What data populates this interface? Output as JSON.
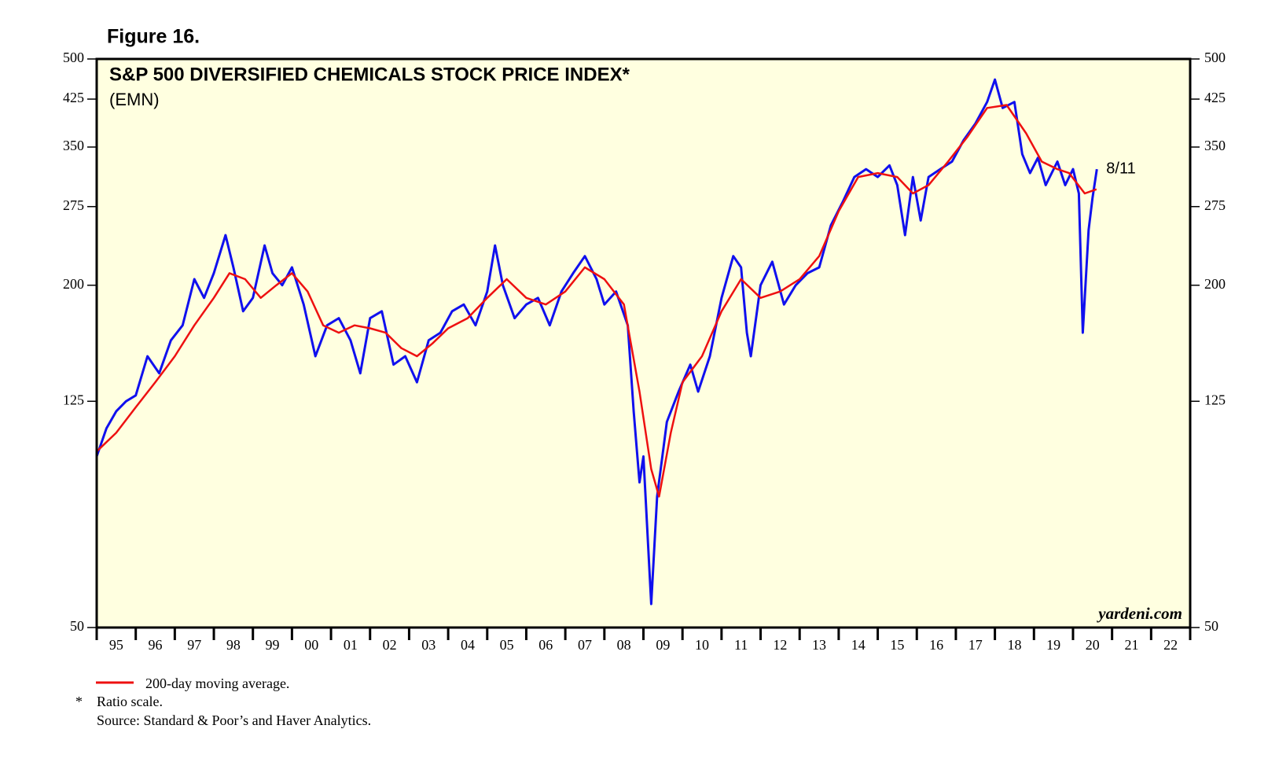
{
  "chart_data": {
    "type": "line",
    "figure_label": "Figure 16.",
    "title": "S&P 500 DIVERSIFIED CHEMICALS STOCK PRICE INDEX*",
    "subtitle": "(EMN)",
    "annotation": "8/11",
    "watermark": "yardeni.com",
    "log_scale": true,
    "ylim": [
      50,
      500
    ],
    "yticks": [
      50,
      125,
      200,
      275,
      350,
      425,
      500
    ],
    "xlim": [
      1995,
      2023
    ],
    "categories": [
      "95",
      "96",
      "97",
      "98",
      "99",
      "00",
      "01",
      "02",
      "03",
      "04",
      "05",
      "06",
      "07",
      "08",
      "09",
      "10",
      "11",
      "12",
      "13",
      "14",
      "15",
      "16",
      "17",
      "18",
      "19",
      "20",
      "21",
      "22"
    ],
    "series": [
      {
        "color": "#1010ee",
        "x": [
          1995.0,
          1995.25,
          1995.5,
          1995.75,
          1996.0,
          1996.3,
          1996.6,
          1996.9,
          1997.2,
          1997.5,
          1997.75,
          1998.0,
          1998.3,
          1998.5,
          1998.75,
          1999.0,
          1999.3,
          1999.5,
          1999.75,
          2000.0,
          2000.3,
          2000.6,
          2000.9,
          2001.2,
          2001.5,
          2001.75,
          2002.0,
          2002.3,
          2002.6,
          2002.9,
          2003.2,
          2003.5,
          2003.8,
          2004.1,
          2004.4,
          2004.7,
          2005.0,
          2005.2,
          2005.4,
          2005.7,
          2006.0,
          2006.3,
          2006.6,
          2006.9,
          2007.2,
          2007.5,
          2007.8,
          2008.0,
          2008.3,
          2008.6,
          2008.75,
          2008.9,
          2009.0,
          2009.2,
          2009.35,
          2009.6,
          2009.9,
          2010.2,
          2010.4,
          2010.7,
          2011.0,
          2011.3,
          2011.5,
          2011.65,
          2011.75,
          2012.0,
          2012.3,
          2012.6,
          2012.9,
          2013.2,
          2013.5,
          2013.8,
          2014.1,
          2014.4,
          2014.7,
          2015.0,
          2015.3,
          2015.5,
          2015.7,
          2015.9,
          2016.1,
          2016.3,
          2016.6,
          2016.9,
          2017.2,
          2017.5,
          2017.8,
          2018.0,
          2018.2,
          2018.5,
          2018.7,
          2018.9,
          2019.1,
          2019.3,
          2019.6,
          2019.8,
          2020.0,
          2020.15,
          2020.25,
          2020.4,
          2020.5,
          2020.61
        ],
        "values": [
          100,
          112,
          120,
          125,
          128,
          150,
          140,
          160,
          170,
          205,
          190,
          210,
          245,
          215,
          180,
          190,
          235,
          210,
          200,
          215,
          185,
          150,
          170,
          175,
          160,
          140,
          175,
          180,
          145,
          150,
          135,
          160,
          165,
          180,
          185,
          170,
          195,
          235,
          200,
          175,
          185,
          190,
          170,
          195,
          210,
          225,
          205,
          185,
          195,
          170,
          120,
          90,
          100,
          55,
          85,
          115,
          130,
          145,
          130,
          150,
          190,
          225,
          215,
          165,
          150,
          200,
          220,
          185,
          200,
          210,
          215,
          255,
          280,
          310,
          320,
          310,
          325,
          300,
          245,
          310,
          260,
          310,
          320,
          330,
          360,
          385,
          420,
          460,
          410,
          420,
          340,
          315,
          335,
          300,
          330,
          300,
          320,
          290,
          165,
          250,
          285,
          320
        ]
      },
      {
        "name": "200-day moving average.",
        "color": "#ee1010",
        "x": [
          1995.0,
          1995.5,
          1996.0,
          1996.5,
          1997.0,
          1997.5,
          1998.0,
          1998.4,
          1998.8,
          1999.2,
          1999.6,
          2000.0,
          2000.4,
          2000.8,
          2001.2,
          2001.6,
          2002.0,
          2002.4,
          2002.8,
          2003.2,
          2003.6,
          2004.0,
          2004.5,
          2005.0,
          2005.5,
          2006.0,
          2006.5,
          2007.0,
          2007.5,
          2008.0,
          2008.5,
          2008.9,
          2009.2,
          2009.4,
          2009.7,
          2010.0,
          2010.5,
          2011.0,
          2011.5,
          2012.0,
          2012.5,
          2013.0,
          2013.5,
          2014.0,
          2014.5,
          2015.0,
          2015.5,
          2015.9,
          2016.3,
          2016.8,
          2017.3,
          2017.8,
          2018.3,
          2018.8,
          2019.2,
          2019.6,
          2019.9,
          2020.3,
          2020.6
        ],
        "values": [
          102,
          110,
          122,
          135,
          150,
          170,
          190,
          210,
          205,
          190,
          200,
          210,
          195,
          170,
          165,
          170,
          168,
          165,
          155,
          150,
          158,
          168,
          175,
          190,
          205,
          190,
          185,
          195,
          215,
          205,
          185,
          130,
          95,
          85,
          110,
          135,
          150,
          180,
          205,
          190,
          195,
          205,
          225,
          270,
          310,
          315,
          310,
          290,
          300,
          330,
          365,
          410,
          415,
          370,
          330,
          320,
          315,
          290,
          295
        ]
      }
    ],
    "footnote_mark": "*",
    "footnote": "Ratio scale.",
    "source": "Source: Standard & Poor’s and Haver Analytics."
  }
}
